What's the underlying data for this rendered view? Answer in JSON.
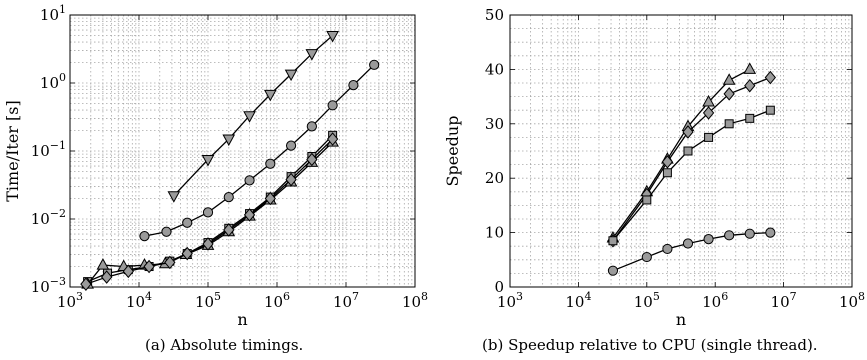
{
  "panels": [
    {
      "caption": "(a)  Absolute timings.",
      "chart_data": {
        "type": "line",
        "title": "",
        "xlabel": "n",
        "ylabel": "Time/Iter [s]",
        "x_scale": "log",
        "y_scale": "log",
        "xlim": [
          1000,
          100000000
        ],
        "ylim": [
          0.001,
          10
        ],
        "x_tick_labels": [
          {
            "base": "10",
            "exp": "3"
          },
          {
            "base": "10",
            "exp": "4"
          },
          {
            "base": "10",
            "exp": "5"
          },
          {
            "base": "10",
            "exp": "6"
          },
          {
            "base": "10",
            "exp": "7"
          },
          {
            "base": "10",
            "exp": "8"
          }
        ],
        "y_tick_labels": [
          {
            "base": "10",
            "exp": "−3"
          },
          {
            "base": "10",
            "exp": "−2"
          },
          {
            "base": "10",
            "exp": "−1"
          },
          {
            "base": "10",
            "exp": "0"
          },
          {
            "base": "10",
            "exp": "1"
          }
        ],
        "grid": true,
        "series": [
          {
            "marker": "triangle-down",
            "x": [
              32000,
              100000,
              200000,
              400000,
              800000,
              1600000,
              3200000,
              6400000
            ],
            "y": [
              0.022,
              0.075,
              0.15,
              0.33,
              0.68,
              1.35,
              2.7,
              5.0
            ]
          },
          {
            "marker": "circle",
            "x": [
              12000,
              25000,
              50000,
              100000,
              200000,
              400000,
              800000,
              1600000,
              3200000,
              6400000,
              12800000,
              25600000
            ],
            "y": [
              0.0056,
              0.0065,
              0.0088,
              0.0125,
              0.021,
              0.037,
              0.065,
              0.12,
              0.23,
              0.47,
              0.93,
              1.85
            ]
          },
          {
            "marker": "square",
            "x": [
              1800,
              3500,
              7000,
              14000,
              28000,
              50000,
              100000,
              200000,
              400000,
              800000,
              1600000,
              3200000,
              6400000
            ],
            "y": [
              0.0012,
              0.0016,
              0.0018,
              0.002,
              0.0024,
              0.0031,
              0.0045,
              0.0073,
              0.012,
              0.021,
              0.042,
              0.083,
              0.17
            ]
          },
          {
            "marker": "triangle-up",
            "x": [
              1800,
              3000,
              6000,
              12000,
              24000,
              48000,
              100000,
              200000,
              400000,
              800000,
              1600000,
              3200000,
              6400000
            ],
            "y": [
              0.0011,
              0.0021,
              0.002,
              0.0021,
              0.0022,
              0.003,
              0.0041,
              0.0065,
              0.011,
              0.019,
              0.035,
              0.068,
              0.135
            ]
          },
          {
            "marker": "diamond",
            "x": [
              1700,
              3400,
              7000,
              14000,
              28000,
              50000,
              100000,
              200000,
              400000,
              800000,
              1600000,
              3200000,
              6400000
            ],
            "y": [
              0.0011,
              0.0014,
              0.0017,
              0.002,
              0.0023,
              0.0031,
              0.0043,
              0.0069,
              0.0115,
              0.02,
              0.038,
              0.075,
              0.15
            ]
          }
        ]
      }
    },
    {
      "caption": "(b)  Speedup relative to CPU (single thread).",
      "chart_data": {
        "type": "line",
        "title": "",
        "xlabel": "n",
        "ylabel": "Speedup",
        "x_scale": "log",
        "y_scale": "linear",
        "xlim": [
          1000,
          100000000
        ],
        "ylim": [
          0,
          50
        ],
        "x_tick_labels": [
          {
            "base": "10",
            "exp": "3"
          },
          {
            "base": "10",
            "exp": "4"
          },
          {
            "base": "10",
            "exp": "5"
          },
          {
            "base": "10",
            "exp": "6"
          },
          {
            "base": "10",
            "exp": "7"
          },
          {
            "base": "10",
            "exp": "8"
          }
        ],
        "y_tick_labels": [
          {
            "base": "0",
            "exp": ""
          },
          {
            "base": "10",
            "exp": ""
          },
          {
            "base": "20",
            "exp": ""
          },
          {
            "base": "30",
            "exp": ""
          },
          {
            "base": "40",
            "exp": ""
          },
          {
            "base": "50",
            "exp": ""
          }
        ],
        "grid": true,
        "series": [
          {
            "marker": "triangle-up",
            "x": [
              32000,
              100000,
              200000,
              400000,
              800000,
              1600000,
              3200000
            ],
            "y": [
              9,
              17.5,
              23.5,
              29.5,
              34,
              38,
              40
            ]
          },
          {
            "marker": "diamond",
            "x": [
              32000,
              100000,
              200000,
              400000,
              800000,
              1600000,
              3200000,
              6400000
            ],
            "y": [
              8.5,
              17,
              23,
              28.5,
              32,
              35.5,
              37,
              38.5
            ]
          },
          {
            "marker": "square",
            "x": [
              32000,
              100000,
              200000,
              400000,
              800000,
              1600000,
              3200000,
              6400000
            ],
            "y": [
              8.5,
              16,
              21,
              25,
              27.5,
              30,
              31,
              32.5
            ]
          },
          {
            "marker": "circle",
            "x": [
              32000,
              100000,
              200000,
              400000,
              800000,
              1600000,
              3200000,
              6400000
            ],
            "y": [
              3,
              5.5,
              7,
              8,
              8.8,
              9.5,
              9.8,
              10
            ]
          }
        ]
      }
    }
  ]
}
